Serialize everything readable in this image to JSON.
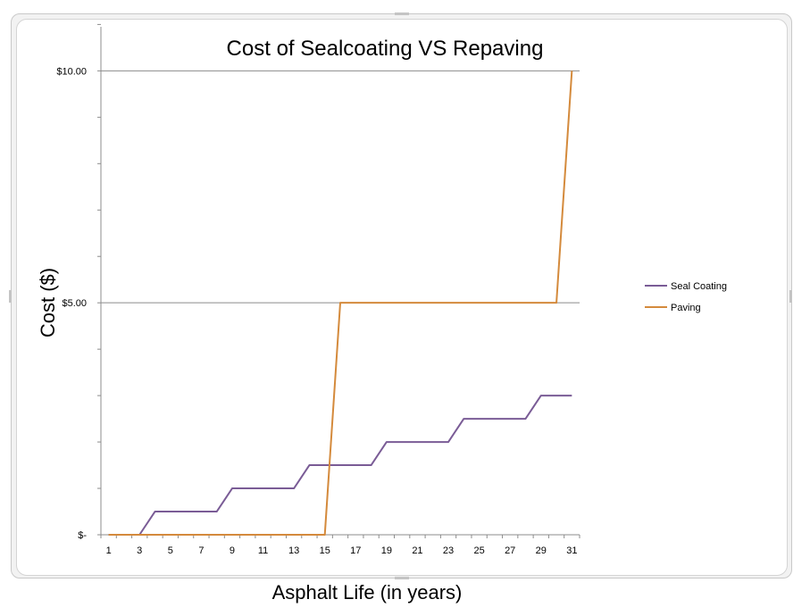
{
  "chart_data": {
    "type": "line",
    "title": "Cost of Sealcoating VS Repaving",
    "xlabel": "Asphalt Life (in years)",
    "ylabel": "Cost ($)",
    "x": [
      1,
      2,
      3,
      4,
      5,
      6,
      7,
      8,
      9,
      10,
      11,
      12,
      13,
      14,
      15,
      16,
      17,
      18,
      19,
      20,
      21,
      22,
      23,
      24,
      25,
      26,
      27,
      28,
      29,
      30,
      31
    ],
    "x_tick_labels": [
      "1",
      "3",
      "5",
      "7",
      "9",
      "11",
      "13",
      "15",
      "17",
      "19",
      "21",
      "23",
      "25",
      "27",
      "29",
      "31"
    ],
    "y_tick_values": [
      0,
      5,
      10
    ],
    "y_tick_labels": [
      "$-",
      "$5.00",
      "$10.00"
    ],
    "ylim": [
      0,
      10.95
    ],
    "grid": "major-horizontal",
    "legend_position": "right",
    "series": [
      {
        "name": "Seal Coating",
        "color": "#7a5c96",
        "values": [
          0,
          0,
          0,
          0.5,
          0.5,
          0.5,
          0.5,
          0.5,
          1,
          1,
          1,
          1,
          1,
          1.5,
          1.5,
          1.5,
          1.5,
          1.5,
          2,
          2,
          2,
          2,
          2,
          2.5,
          2.5,
          2.5,
          2.5,
          2.5,
          3,
          3,
          3
        ]
      },
      {
        "name": "Paving",
        "color": "#d48a3c",
        "values": [
          0,
          0,
          0,
          0,
          0,
          0,
          0,
          0,
          0,
          0,
          0,
          0,
          0,
          0,
          0,
          5,
          5,
          5,
          5,
          5,
          5,
          5,
          5,
          5,
          5,
          5,
          5,
          5,
          5,
          5,
          10
        ]
      }
    ]
  }
}
